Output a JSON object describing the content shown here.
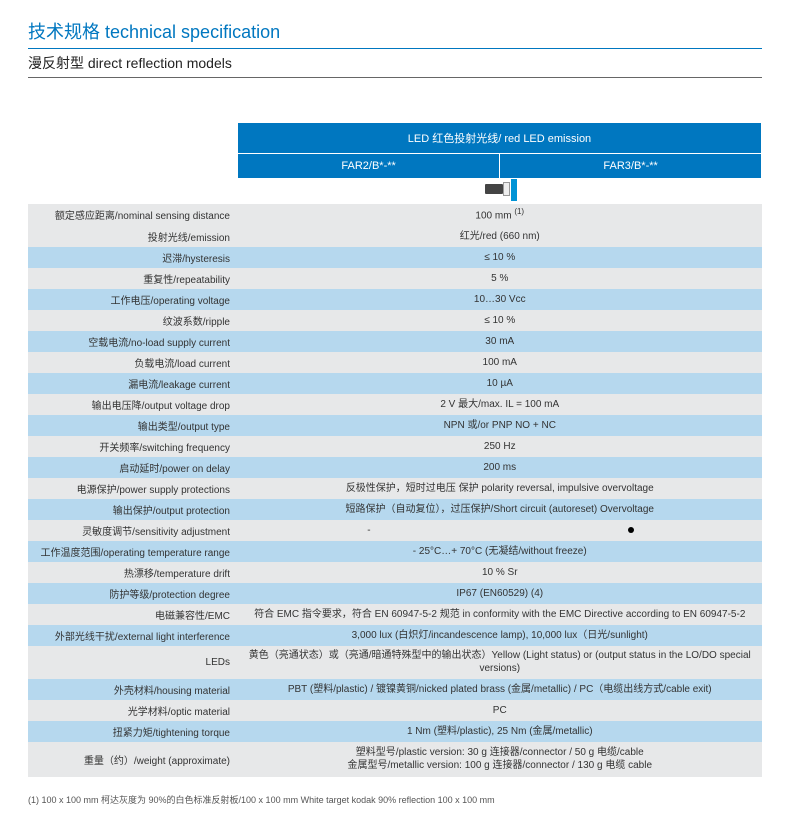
{
  "page": {
    "title": "技术规格 technical  specification",
    "subtitle": "漫反射型 direct reflection models"
  },
  "header": {
    "group": "LED 红色投射光线/ red LED emission",
    "col1": "FAR2/B*-**",
    "col2": "FAR3/B*-**"
  },
  "image_row": {
    "caption": "100 mm (1)"
  },
  "rows": [
    {
      "band": "a",
      "label": "额定感应距离/nominal sensing distance",
      "v1": "",
      "v2": "",
      "img": true
    },
    {
      "band": "a",
      "label": "投射光线/emission",
      "v": "红光/red (660 nm)"
    },
    {
      "band": "b",
      "label": "迟滞/hysteresis",
      "v": "≤ 10 %"
    },
    {
      "band": "a",
      "label": "重复性/repeatability",
      "v": "5 %"
    },
    {
      "band": "b",
      "label": "工作电压/operating voltage",
      "v": "10…30 Vcc"
    },
    {
      "band": "a",
      "label": "纹波系数/ripple",
      "v": "≤ 10 %"
    },
    {
      "band": "b",
      "label": "空载电流/no-load supply current",
      "v": "30 mA"
    },
    {
      "band": "a",
      "label": "负载电流/load current",
      "v": "100 mA"
    },
    {
      "band": "b",
      "label": "漏电流/leakage current",
      "v": "10 µA"
    },
    {
      "band": "a",
      "label": "输出电压降/output voltage drop",
      "v": "2 V 最大/max. IL = 100 mA"
    },
    {
      "band": "b",
      "label": "输出类型/output type",
      "v": "NPN 或/or PNP  NO + NC"
    },
    {
      "band": "a",
      "label": "开关频率/switching frequency",
      "v": "250 Hz"
    },
    {
      "band": "b",
      "label": "启动延时/power on delay",
      "v": "200 ms"
    },
    {
      "band": "a",
      "label": "电源保护/power supply protections",
      "v": "反极性保护，短时过电压 保护 polarity reversal, impulsive overvoltage"
    },
    {
      "band": "b",
      "label": "输出保护/output protection",
      "v": "短路保护（自动复位），过压保护/Short circuit (autoreset) Overvoltage"
    },
    {
      "band": "a",
      "label": "灵敏度调节/sensitivity adjustment",
      "split": true,
      "v1": "-",
      "v2": "DOT"
    },
    {
      "band": "b",
      "label": "工作温度范围/operating temperature range",
      "v": "- 25°C…+ 70°C (无凝结/without freeze)"
    },
    {
      "band": "a",
      "label": "热漂移/temperature drift",
      "v": "10 % Sr"
    },
    {
      "band": "b",
      "label": "防护等级/protection degree",
      "v": "IP67 (EN60529) (4)"
    },
    {
      "band": "a",
      "label": "电磁兼容性/EMC",
      "v": "符合 EMC 指令要求，符合 EN 60947-5-2 规范 in conformity with the EMC Directive according to EN 60947-5-2"
    },
    {
      "band": "b",
      "label": "外部光线干扰/external light interference",
      "v": "3,000 lux (白炽灯/incandescence lamp), 10,000 lux（日光/sunlight)"
    },
    {
      "band": "a",
      "label": "LEDs",
      "v": "黄色（亮通状态）或（亮通/暗通特殊型中的输出状态）Yellow (Light status) or (output status in the LO/DO special versions)"
    },
    {
      "band": "b",
      "label": "外壳材料/housing material",
      "v": "PBT (塑料/plastic) / 镀镍黄铜/nicked plated brass (金属/metallic) / PC（电缆出线方式/cable  exit)"
    },
    {
      "band": "a",
      "label": "光学材料/optic material",
      "v": "PC"
    },
    {
      "band": "b",
      "label": "扭紧力矩/tightening torque",
      "v": "1 Nm (塑料/plastic), 25 Nm (金属/metallic)"
    },
    {
      "band": "a",
      "label": "重量（约）/weight (approximate)",
      "multi": true,
      "v": "塑料型号/plastic version: 30 g 连接器/connector / 50 g 电缆/cable\n金属型号/metallic version: 100 g 连接器/connector / 130 g 电缆 cable"
    }
  ],
  "footnote": "(1) 100 x 100 mm 柯达灰度为 90%的白色标准反射板/100 x 100 mm White target kodak 90% reflection 100 x 100 mm",
  "colors": {
    "brand_blue": "#0077c0",
    "band_grey": "#e7e8e9",
    "band_blue": "#b6d8ee"
  }
}
